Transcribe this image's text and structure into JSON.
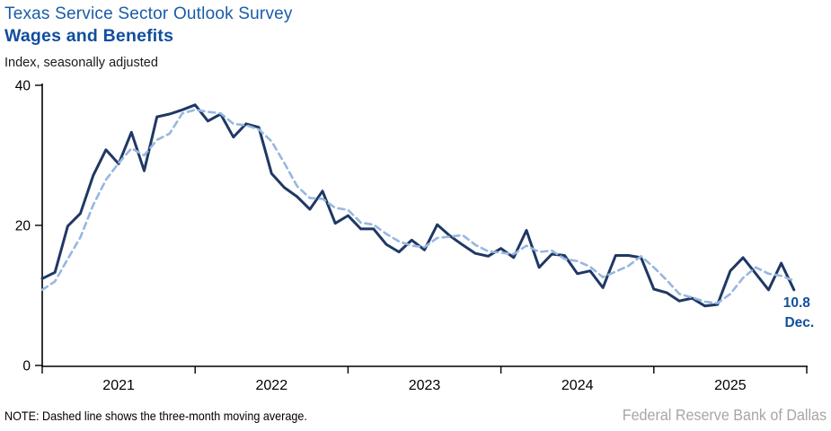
{
  "header": {
    "title": "Texas Service Sector Outlook Survey",
    "subtitle": "Wages and Benefits",
    "units": "Index, seasonally adjusted"
  },
  "footer": {
    "note": "NOTE: Dashed line shows the three-month moving average.",
    "source": "Federal Reserve Bank of Dallas"
  },
  "annotation": {
    "value": "10.8",
    "period": "Dec."
  },
  "colors": {
    "title_blue": "#1A5CA8",
    "subtitle_blue": "#0F4E9E",
    "solid_line": "#1F3864",
    "dashed_line": "#97B7E0",
    "annotation_blue": "#124F9B",
    "axis_black": "#000000",
    "source_gray": "#A6A6A6"
  },
  "chart_data": {
    "type": "line",
    "title": "Wages and Benefits",
    "ylabel": "Index, seasonally adjusted",
    "xlabel": "",
    "ylim": [
      0,
      40
    ],
    "yticks": [
      0,
      20,
      40
    ],
    "grid": false,
    "legend_position": "none",
    "x_start": "2021-01",
    "x_end": "2025-12",
    "months_per_point": 1,
    "xtick_years": [
      "2021",
      "2022",
      "2023",
      "2024",
      "2025"
    ],
    "last_point_label": "10.8 Dec.",
    "series": [
      {
        "name": "Wages and benefits index",
        "style": "solid",
        "color": "#1F3864",
        "values": [
          12.4,
          13.3,
          19.9,
          21.7,
          27.1,
          30.8,
          28.8,
          33.3,
          27.8,
          35.5,
          35.9,
          36.5,
          37.2,
          34.9,
          35.9,
          32.6,
          34.5,
          34.0,
          27.4,
          25.4,
          24.1,
          22.3,
          24.9,
          20.3,
          21.4,
          19.5,
          19.5,
          17.3,
          16.2,
          17.9,
          16.5,
          20.1,
          18.5,
          17.2,
          16.0,
          15.6,
          16.7,
          15.4,
          19.3,
          14.0,
          15.9,
          15.7,
          13.1,
          13.5,
          11.1,
          15.7,
          15.7,
          15.4,
          10.9,
          10.4,
          9.2,
          9.6,
          8.5,
          8.7,
          13.5,
          15.4,
          13.1,
          10.8,
          14.6,
          10.8
        ]
      },
      {
        "name": "Three-month moving average",
        "style": "dashed",
        "color": "#97B7E0",
        "values": [
          10.8,
          12.0,
          15.2,
          18.3,
          22.9,
          26.5,
          28.9,
          31.0,
          30.0,
          32.2,
          33.1,
          36.0,
          36.5,
          36.2,
          36.0,
          34.5,
          34.3,
          33.7,
          32.0,
          28.9,
          25.6,
          23.9,
          23.8,
          22.5,
          22.2,
          20.4,
          20.1,
          18.8,
          17.7,
          17.1,
          16.9,
          18.2,
          18.4,
          18.6,
          17.2,
          16.3,
          16.1,
          15.9,
          17.1,
          16.2,
          16.4,
          15.2,
          14.9,
          14.1,
          12.6,
          13.4,
          14.2,
          15.6,
          14.0,
          12.2,
          10.2,
          9.7,
          9.1,
          8.9,
          10.2,
          12.5,
          14.0,
          13.1,
          12.8,
          12.1
        ]
      }
    ]
  }
}
